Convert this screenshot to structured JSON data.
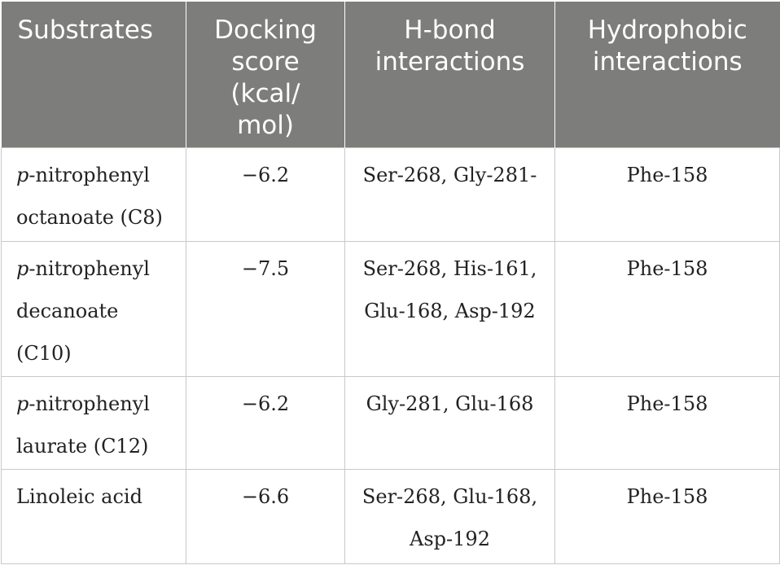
{
  "table": {
    "headers": [
      "Substrates",
      "Docking score (kcal/ mol)",
      "H-bond interactions",
      "Hydrophobic interactions"
    ],
    "rows": [
      {
        "substrate_prefix": "p",
        "substrate_rest": "-nitrophenyl octanoate (C8)",
        "score": "−6.2",
        "hbond": "Ser-268, Gly-281-",
        "hydrophobic": "Phe-158"
      },
      {
        "substrate_prefix": "p",
        "substrate_rest": "-nitrophenyl decanoate (C10)",
        "score": "−7.5",
        "hbond": "Ser-268, His-161, Glu-168, Asp-192",
        "hydrophobic": "Phe-158"
      },
      {
        "substrate_prefix": "p",
        "substrate_rest": "-nitrophenyl laurate (C12)",
        "score": "−6.2",
        "hbond": "Gly-281, Glu-168",
        "hydrophobic": "Phe-158"
      },
      {
        "substrate_prefix": "",
        "substrate_rest": "Linoleic acid",
        "score": "−6.6",
        "hbond": "Ser-268, Glu-168, Asp-192",
        "hydrophobic": "Phe-158"
      }
    ]
  },
  "colors": {
    "header_bg": "#7d7d7b",
    "header_text": "#ffffff",
    "border": "#c9c9c9"
  }
}
